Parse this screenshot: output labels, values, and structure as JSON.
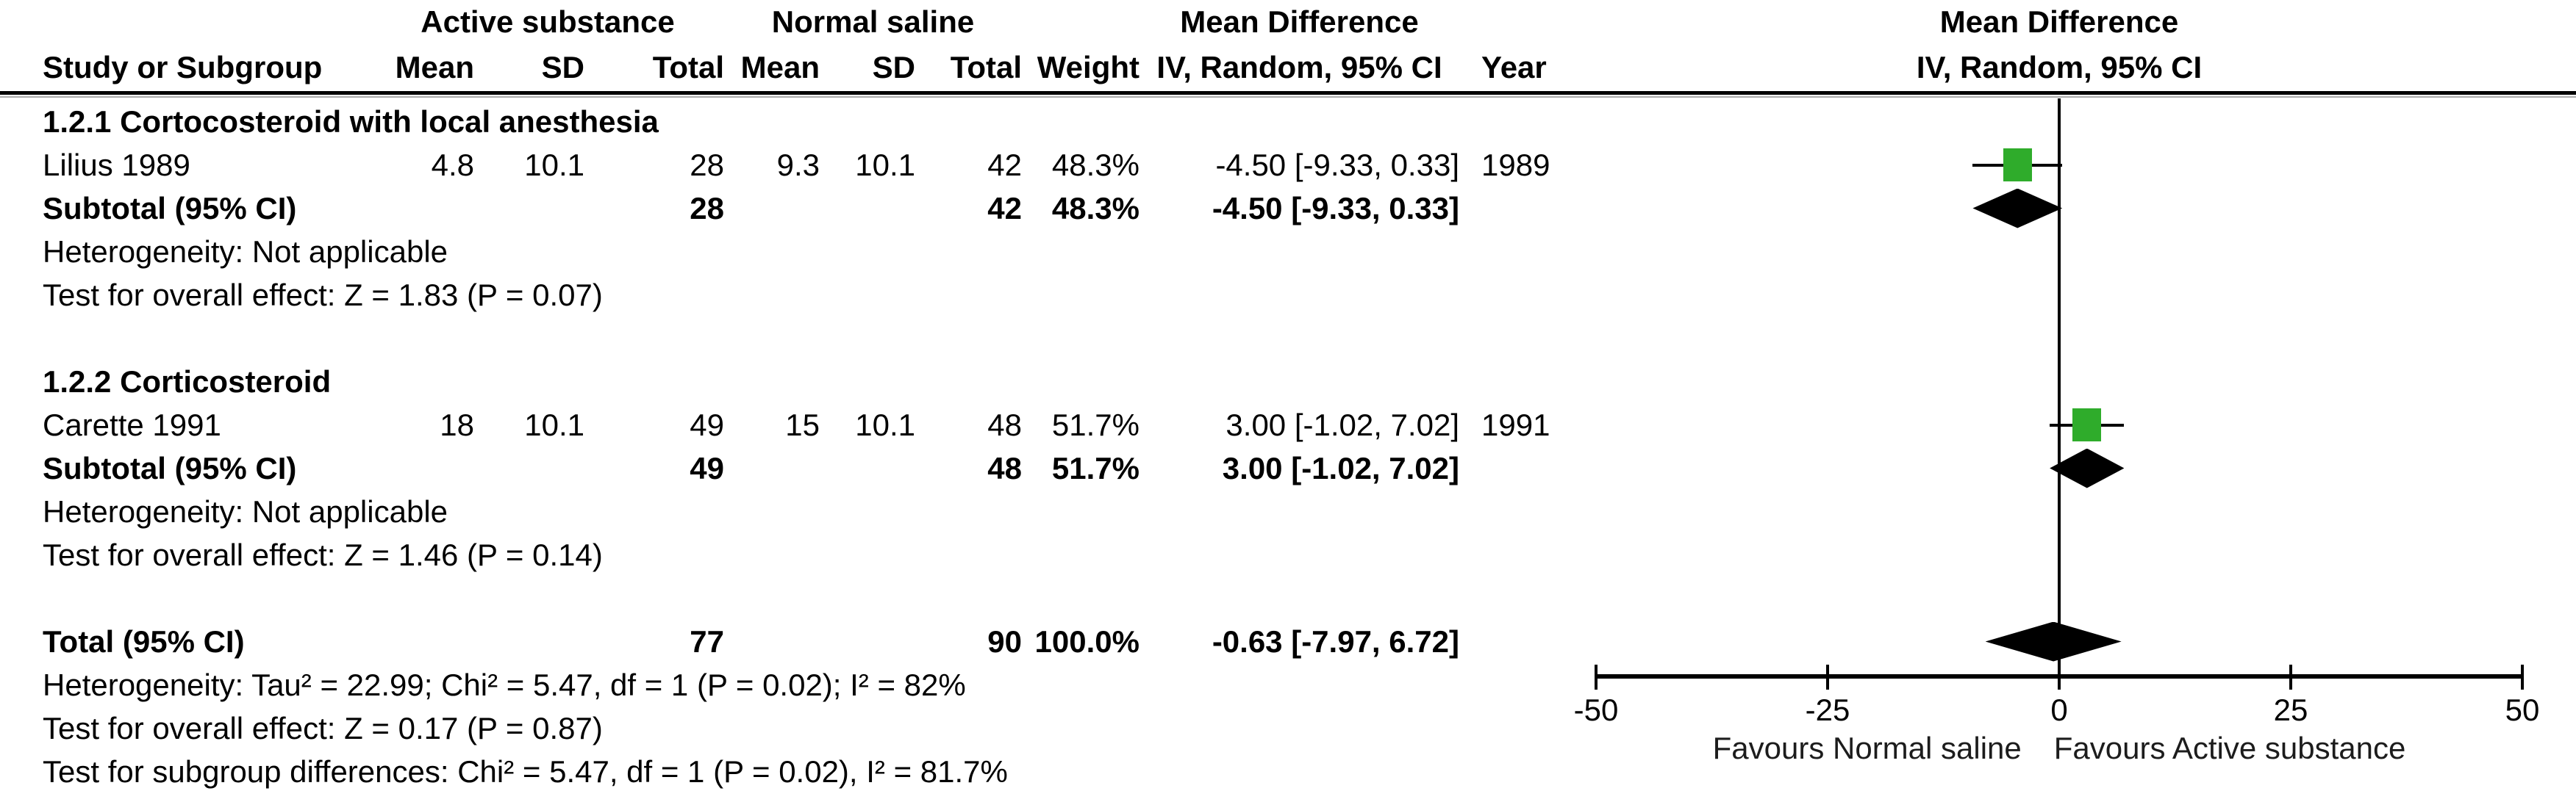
{
  "table": {
    "group_headers": {
      "active": "Active substance",
      "saline": "Normal saline",
      "md": "Mean Difference"
    },
    "columns": {
      "study": "Study or Subgroup",
      "mean1": "Mean",
      "sd1": "SD",
      "total1": "Total",
      "mean2": "Mean",
      "sd2": "SD",
      "total2": "Total",
      "weight": "Weight",
      "ci": "IV, Random, 95% CI",
      "year": "Year"
    },
    "rows": [
      {
        "type": "subgroup",
        "label": "1.2.1 Cortocosteroid with local anesthesia"
      },
      {
        "type": "study",
        "study": "Lilius 1989",
        "mean1": "4.8",
        "sd1": "10.1",
        "total1": "28",
        "mean2": "9.3",
        "sd2": "10.1",
        "total2": "42",
        "weight": "48.3%",
        "ci": "-4.50 [-9.33, 0.33]",
        "year": "1989"
      },
      {
        "type": "subtotal",
        "study": "Subtotal (95% CI)",
        "total1": "28",
        "total2": "42",
        "weight": "48.3%",
        "ci": "-4.50 [-9.33, 0.33]"
      },
      {
        "type": "note",
        "label": "Heterogeneity: Not applicable"
      },
      {
        "type": "note",
        "label": "Test for overall effect: Z = 1.83 (P = 0.07)"
      },
      {
        "type": "blank"
      },
      {
        "type": "subgroup",
        "label": "1.2.2 Corticosteroid"
      },
      {
        "type": "study",
        "study": "Carette 1991",
        "mean1": "18",
        "sd1": "10.1",
        "total1": "49",
        "mean2": "15",
        "sd2": "10.1",
        "total2": "48",
        "weight": "51.7%",
        "ci": "3.00 [-1.02, 7.02]",
        "year": "1991"
      },
      {
        "type": "subtotal",
        "study": "Subtotal (95% CI)",
        "total1": "49",
        "total2": "48",
        "weight": "51.7%",
        "ci": "3.00 [-1.02, 7.02]"
      },
      {
        "type": "note",
        "label": "Heterogeneity: Not applicable"
      },
      {
        "type": "note",
        "label": "Test for overall effect: Z = 1.46 (P = 0.14)"
      },
      {
        "type": "blank"
      },
      {
        "type": "total",
        "study": "Total (95% CI)",
        "total1": "77",
        "total2": "90",
        "weight": "100.0%",
        "ci": "-0.63 [-7.97, 6.72]"
      },
      {
        "type": "note",
        "label": "Heterogeneity: Tau² = 22.99; Chi² = 5.47, df = 1 (P = 0.02); I² = 82%"
      },
      {
        "type": "note",
        "label": "Test for overall effect: Z = 0.17 (P = 0.87)"
      },
      {
        "type": "note",
        "label": "Test for subgroup differences: Chi² = 5.47, df = 1 (P = 0.02), I² = 81.7%"
      }
    ]
  },
  "plot": {
    "header_line1": "Mean Difference",
    "header_line2": "IV, Random, 95% CI"
  },
  "chart_data": {
    "type": "forest",
    "effect_measure": "Mean Difference (IV, Random, 95% CI)",
    "x_axis": {
      "min": -50,
      "max": 50,
      "ticks": [
        -50,
        -25,
        0,
        25,
        50
      ],
      "label_left": "Favours Normal saline",
      "label_right": "Favours Active substance"
    },
    "subgroups": [
      {
        "name": "1.2.1 Cortocosteroid with local anesthesia",
        "studies": [
          {
            "study": "Lilius 1989",
            "md": -4.5,
            "ci": [
              -9.33,
              0.33
            ],
            "weight_pct": 48.3,
            "year": 1989
          }
        ],
        "subtotal": {
          "md": -4.5,
          "ci": [
            -9.33,
            0.33
          ],
          "weight_pct": 48.3
        }
      },
      {
        "name": "1.2.2 Corticosteroid",
        "studies": [
          {
            "study": "Carette 1991",
            "md": 3.0,
            "ci": [
              -1.02,
              7.02
            ],
            "weight_pct": 51.7,
            "year": 1991
          }
        ],
        "subtotal": {
          "md": 3.0,
          "ci": [
            -1.02,
            7.02
          ],
          "weight_pct": 51.7
        }
      }
    ],
    "total": {
      "md": -0.63,
      "ci": [
        -7.97,
        6.72
      ],
      "weight_pct": 100.0
    },
    "items": [
      {
        "kind": "square",
        "row": 1,
        "label": "Lilius 1989",
        "md": -4.5,
        "lo": -9.33,
        "hi": 0.33,
        "weight_pct": 48.3
      },
      {
        "kind": "diamond",
        "row": 2,
        "label": "Subtotal 1.2.1",
        "md": -4.5,
        "lo": -9.33,
        "hi": 0.33
      },
      {
        "kind": "square",
        "row": 7,
        "label": "Carette 1991",
        "md": 3.0,
        "lo": -1.02,
        "hi": 7.02,
        "weight_pct": 51.7
      },
      {
        "kind": "diamond",
        "row": 8,
        "label": "Subtotal 1.2.2",
        "md": 3.0,
        "lo": -1.02,
        "hi": 7.02
      },
      {
        "kind": "diamond",
        "row": 12,
        "label": "Total",
        "md": -0.63,
        "lo": -7.97,
        "hi": 6.72
      }
    ],
    "colors": {
      "study_marker": "#2FAC2B",
      "diamond": "#000000",
      "line": "#000000"
    }
  }
}
